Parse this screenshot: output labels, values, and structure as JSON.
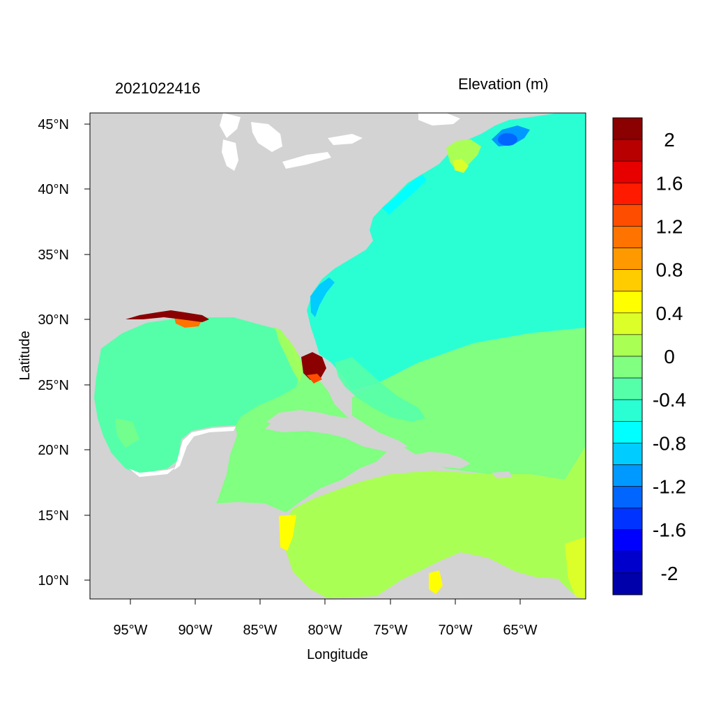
{
  "map": {
    "date_label": "2021022416",
    "field_title": "Elevation (m)",
    "x_axis_title": "Longitude",
    "y_axis_title": "Latitude",
    "lon_ticks": [
      "95°W",
      "90°W",
      "85°W",
      "80°W",
      "75°W",
      "70°W",
      "65°W"
    ],
    "lat_ticks": [
      "45°N",
      "40°N",
      "35°N",
      "30°N",
      "25°N",
      "20°N",
      "15°N",
      "10°N"
    ],
    "land_color": "#d3d3d3"
  },
  "colorbar": {
    "labels": [
      "2",
      "1.6",
      "1.2",
      "0.8",
      "0.4",
      "0",
      "-0.4",
      "-0.8",
      "-1.2",
      "-1.6",
      "-2"
    ],
    "colors_top_to_bottom": [
      "#8b0000",
      "#b80000",
      "#e60000",
      "#ff1a00",
      "#ff4d00",
      "#ff7300",
      "#ff9900",
      "#ffcc00",
      "#ffff00",
      "#dcff2a",
      "#aaff55",
      "#80ff80",
      "#55ffaa",
      "#2affd4",
      "#00ffff",
      "#00ccff",
      "#0099ff",
      "#0066ff",
      "#0033ff",
      "#0000ff",
      "#0000cc",
      "#0000aa"
    ]
  }
}
